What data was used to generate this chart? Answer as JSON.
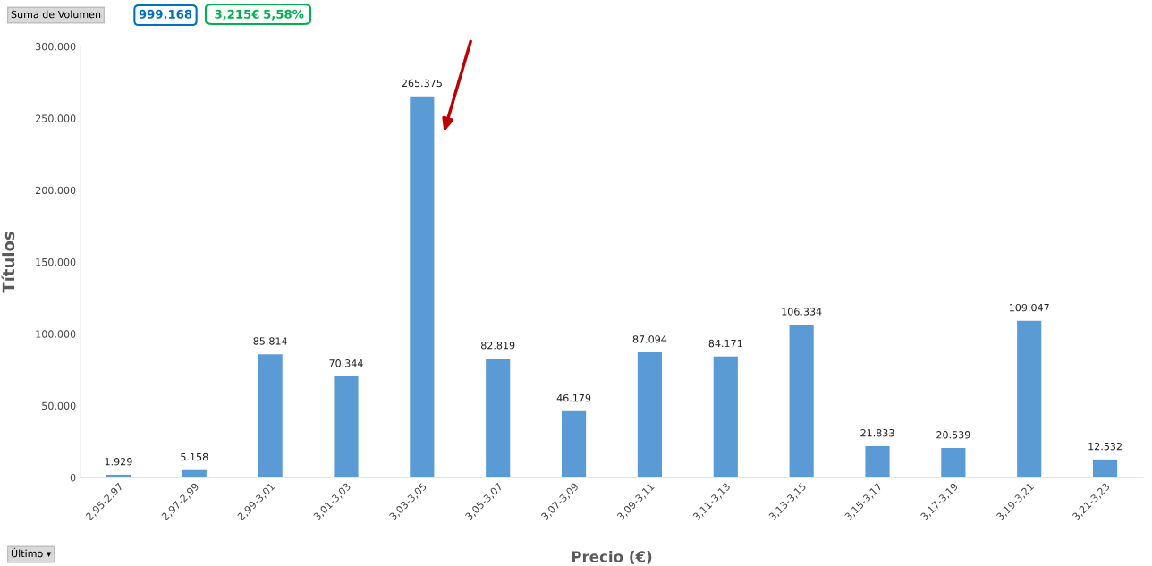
{
  "chart_data": {
    "type": "bar",
    "xlabel": "Precio (€)",
    "ylabel": "Títulos",
    "categories": [
      "2,95-2,97",
      "2,97-2,99",
      "2,99-3,01",
      "3,01-3,03",
      "3,03-3,05",
      "3,05-3,07",
      "3,07-3,09",
      "3,09-3,11",
      "3,11-3,13",
      "3,13-3,15",
      "3,15-3,17",
      "3,17-3,19",
      "3,19-3,21",
      "3,21-3,23"
    ],
    "values": [
      1929,
      5158,
      85814,
      70344,
      265375,
      82819,
      46179,
      87094,
      84171,
      106334,
      21833,
      20539,
      109047,
      12532
    ],
    "value_labels": [
      "1.929",
      "5.158",
      "85.814",
      "70.344",
      "265.375",
      "82.819",
      "46.179",
      "87.094",
      "84.171",
      "106.334",
      "21.833",
      "20.539",
      "109.047",
      "12.532"
    ],
    "color": "#5b9bd5",
    "ylim": [
      0,
      300000
    ],
    "yticks": [
      0,
      {
        "value": 50000,
        "label": "50.000"
      },
      {
        "value": 100000,
        "label": "100.000"
      },
      {
        "value": 150000,
        "label": "150.000"
      },
      {
        "value": 200000,
        "label": "200.000"
      },
      {
        "value": 250000,
        "label": "250.000"
      },
      {
        "value": 300000,
        "label": "300.000"
      }
    ],
    "grid": false,
    "annotations": [
      "Suma de Volumen",
      "999.168",
      "3,215€",
      "5,58%",
      "Último ▾"
    ]
  }
}
